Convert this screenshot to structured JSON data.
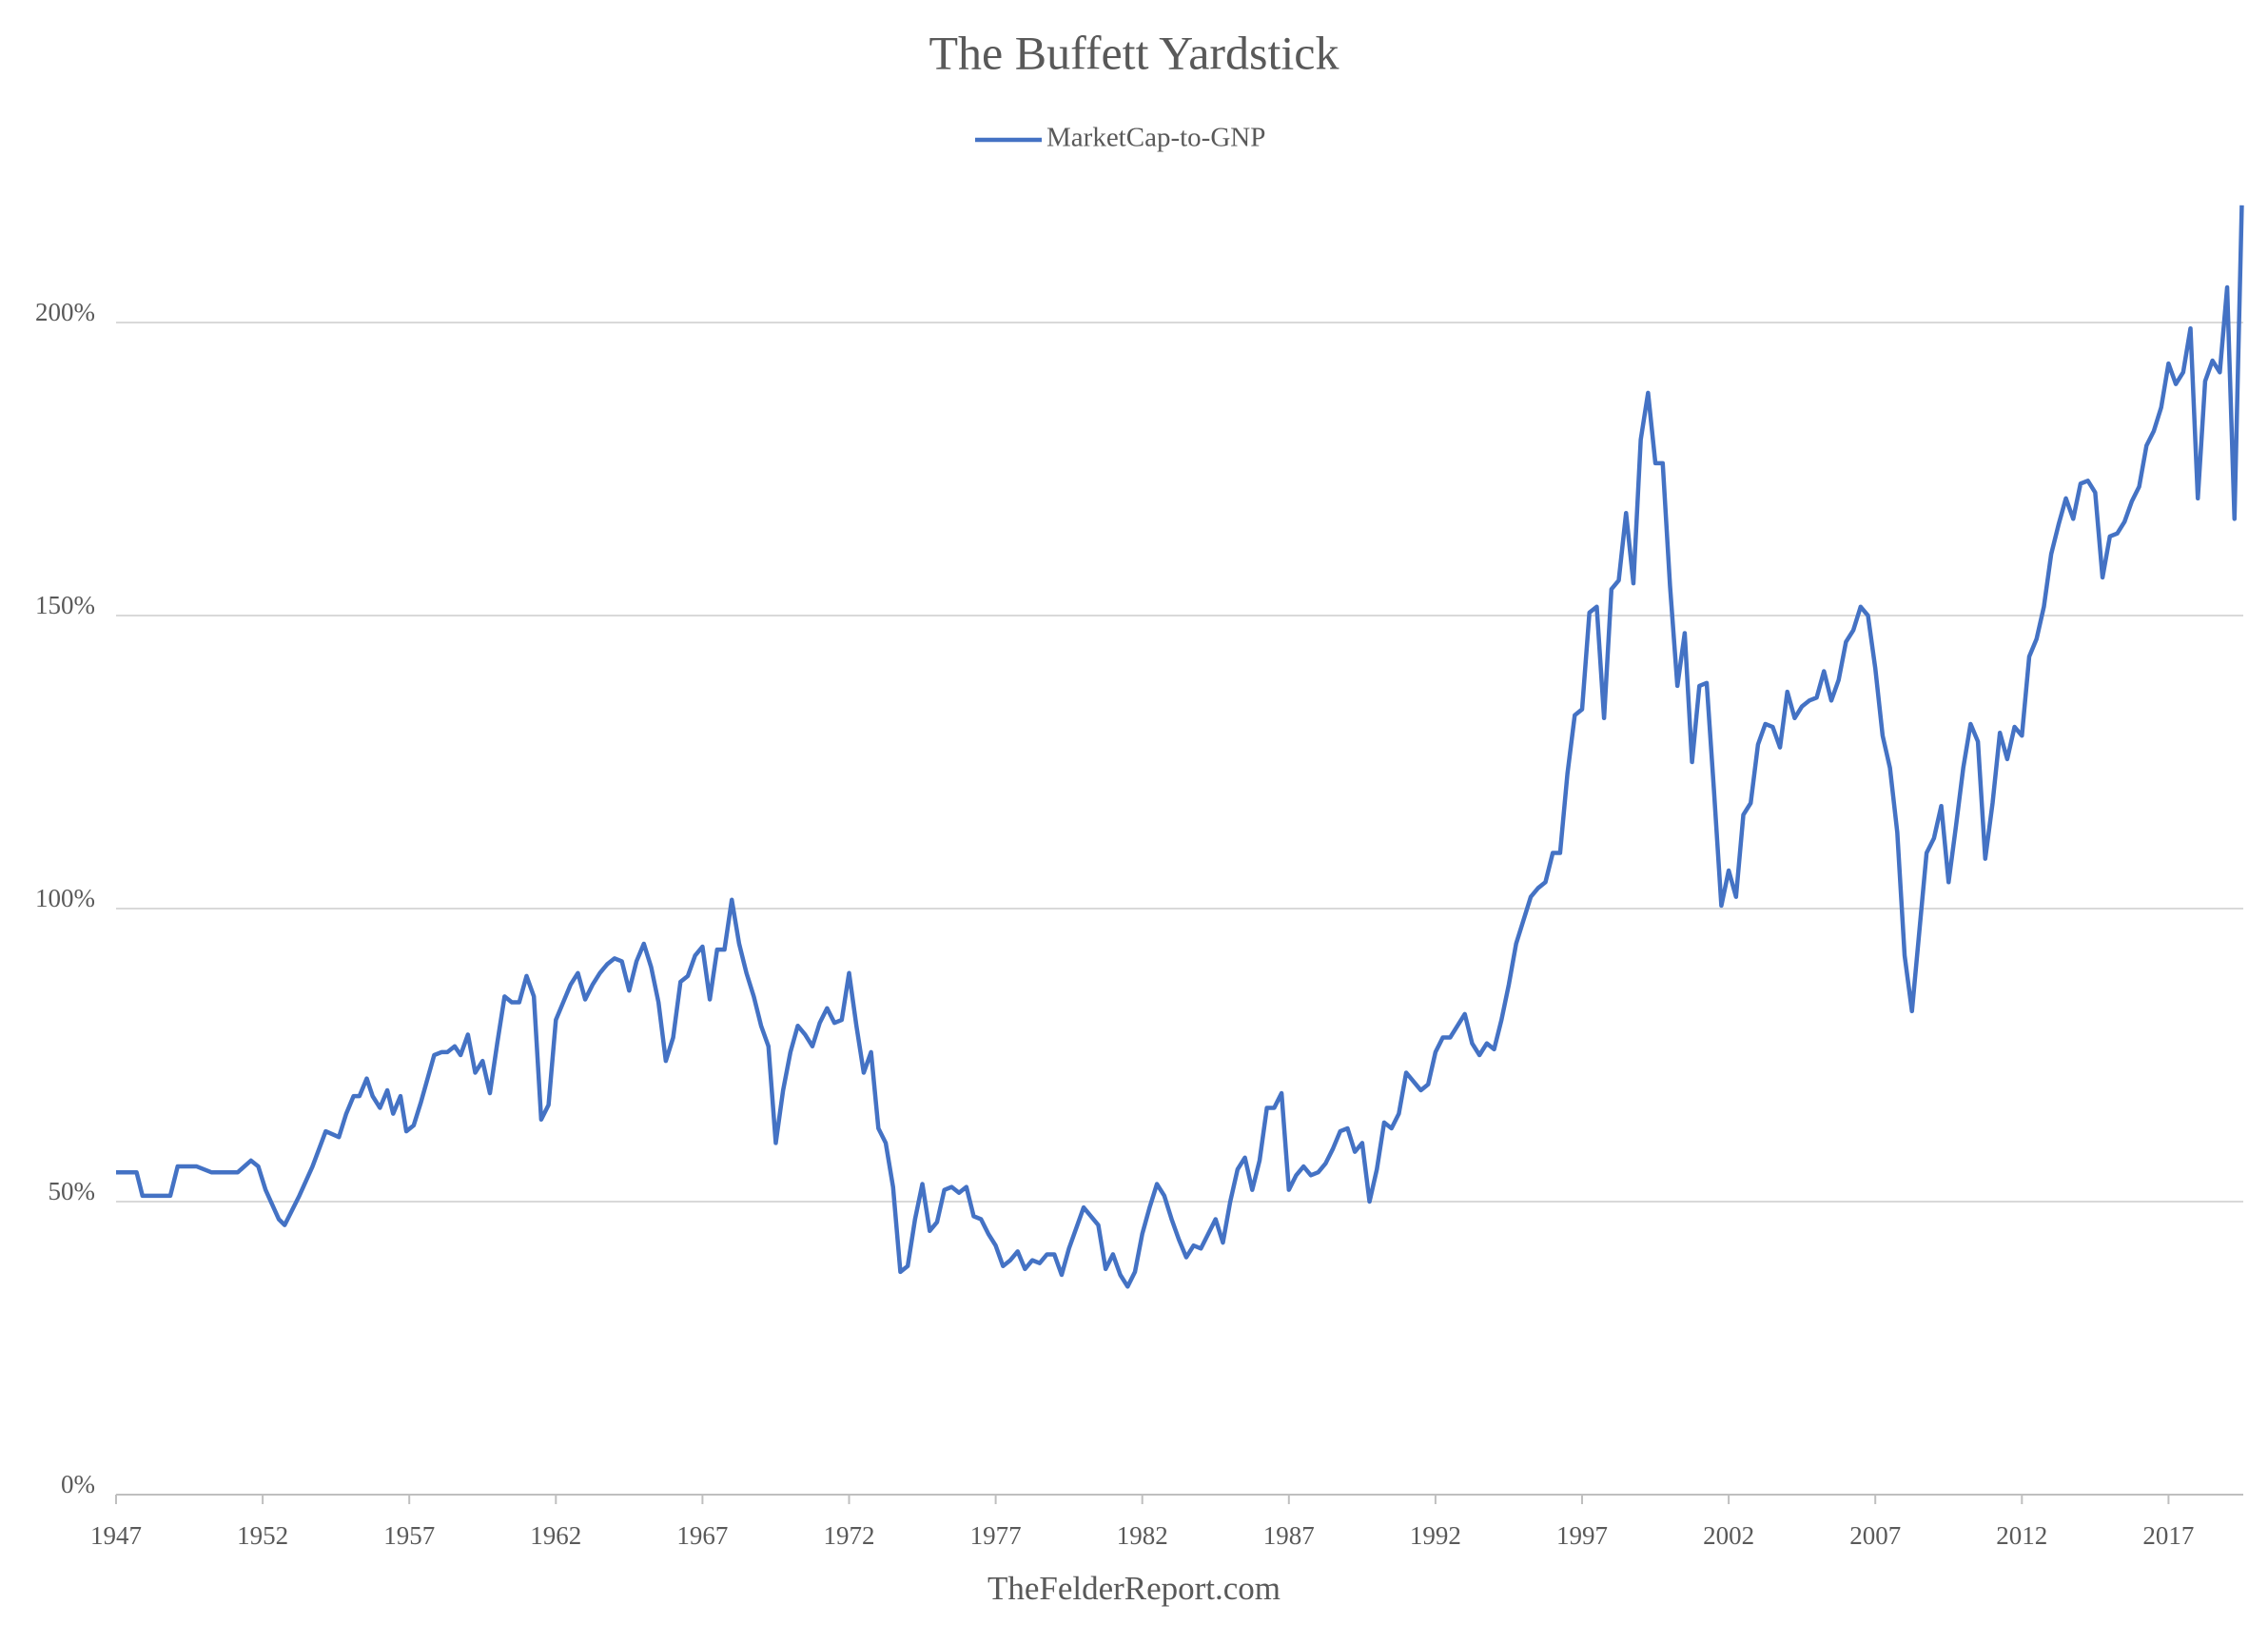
{
  "chart_data": {
    "type": "line",
    "title": "The Buffett Yardstick",
    "source": "TheFelderReport.com",
    "x": [
      1947,
      1947.7,
      1947.9,
      1948.85,
      1949.1,
      1949.75,
      1950.25,
      1951.15,
      1951.6,
      1951.85,
      1952.1,
      1952.55,
      1952.75,
      1953.25,
      1953.7,
      1954.15,
      1954.6,
      1954.85,
      1955.1,
      1955.3,
      1955.55,
      1955.75,
      1956.0,
      1956.25,
      1956.45,
      1956.7,
      1956.9,
      1957.15,
      1957.4,
      1957.85,
      1958.1,
      1958.3,
      1958.55,
      1958.75,
      1959.0,
      1959.25,
      1959.5,
      1959.75,
      1960.0,
      1960.25,
      1960.5,
      1960.75,
      1961.0,
      1961.25,
      1961.5,
      1961.75,
      1962.0,
      1962.25,
      1962.5,
      1962.75,
      1963.0,
      1963.25,
      1963.5,
      1963.75,
      1964.0,
      1964.25,
      1964.5,
      1964.75,
      1965.0,
      1965.25,
      1965.5,
      1965.75,
      1966.0,
      1966.25,
      1966.5,
      1966.75,
      1967.0,
      1967.25,
      1967.5,
      1967.75,
      1968.0,
      1968.25,
      1968.5,
      1968.75,
      1969.0,
      1969.25,
      1969.5,
      1969.75,
      1970.0,
      1970.25,
      1970.5,
      1970.75,
      1971.0,
      1971.25,
      1971.5,
      1971.75,
      1972.0,
      1972.25,
      1972.5,
      1972.75,
      1973.0,
      1973.25,
      1973.5,
      1973.75,
      1974.0,
      1974.25,
      1974.5,
      1974.75,
      1975.0,
      1975.25,
      1975.5,
      1975.75,
      1976.0,
      1976.25,
      1976.5,
      1976.75,
      1977.0,
      1977.25,
      1977.5,
      1977.75,
      1978.0,
      1978.25,
      1978.5,
      1978.75,
      1979.0,
      1979.25,
      1979.5,
      1979.75,
      1980.0,
      1980.25,
      1980.5,
      1980.75,
      1981.0,
      1981.25,
      1981.5,
      1981.75,
      1982.0,
      1982.25,
      1982.5,
      1982.75,
      1983.0,
      1983.25,
      1983.5,
      1983.75,
      1984.0,
      1984.25,
      1984.5,
      1984.75,
      1985.0,
      1985.25,
      1985.5,
      1985.75,
      1986.0,
      1986.25,
      1986.5,
      1986.75,
      1987.0,
      1987.25,
      1987.5,
      1987.75,
      1988.0,
      1988.25,
      1988.5,
      1988.75,
      1989.0,
      1989.25,
      1989.5,
      1989.75,
      1990.0,
      1990.25,
      1990.5,
      1990.75,
      1991.0,
      1991.25,
      1991.5,
      1991.75,
      1992.0,
      1992.25,
      1992.5,
      1992.75,
      1993.0,
      1993.25,
      1993.5,
      1993.75,
      1994.0,
      1994.25,
      1994.5,
      1994.75,
      1995.0,
      1995.25,
      1995.5,
      1995.75,
      1996.0,
      1996.25,
      1996.5,
      1996.75,
      1997.0,
      1997.25,
      1997.5,
      1997.75,
      1998.0,
      1998.25,
      1998.5,
      1998.75,
      1999.0,
      1999.25,
      1999.5,
      1999.75,
      2000.0,
      2000.25,
      2000.5,
      2000.75,
      2001.0,
      2001.25,
      2001.5,
      2001.75,
      2002.0,
      2002.25,
      2002.5,
      2002.75,
      2003.0,
      2003.25,
      2003.5,
      2003.75,
      2004.0,
      2004.25,
      2004.5,
      2004.75,
      2005.0,
      2005.25,
      2005.5,
      2005.75,
      2006.0,
      2006.25,
      2006.5,
      2006.75,
      2007.0,
      2007.25,
      2007.5,
      2007.75,
      2008.0,
      2008.25,
      2008.5,
      2008.75,
      2009.0,
      2009.25,
      2009.5,
      2009.75,
      2010.0,
      2010.25,
      2010.5,
      2010.75,
      2011.0,
      2011.25,
      2011.5,
      2011.75,
      2012.0,
      2012.25,
      2012.5,
      2012.75,
      2013.0,
      2013.25,
      2013.5,
      2013.75,
      2014.0,
      2014.25,
      2014.5,
      2014.75,
      2015.0,
      2015.25,
      2015.5,
      2015.75,
      2016.0,
      2016.25,
      2016.5,
      2016.75,
      2017.0,
      2017.25,
      2017.5,
      2017.75,
      2018.0,
      2018.25,
      2018.5,
      2018.75,
      2019.0,
      2019.25,
      2019.5
    ],
    "series": [
      {
        "name": "MarketCap-to-GNP",
        "color": "#4472c4",
        "values": [
          55,
          55,
          51,
          51,
          56,
          56,
          55,
          55,
          57,
          56,
          52,
          47,
          46,
          51,
          56,
          62,
          61,
          65,
          68,
          68,
          71,
          68,
          66,
          69,
          65,
          68,
          62,
          63,
          67,
          75,
          75.5,
          75.5,
          76.5,
          75,
          78.5,
          72,
          74,
          68.5,
          77,
          85,
          84,
          84,
          88.5,
          85,
          64,
          66.5,
          81,
          84,
          87,
          89,
          84.5,
          87,
          89,
          90.5,
          91.5,
          91,
          86,
          91,
          94,
          90,
          84,
          74,
          78,
          87.5,
          88.5,
          92,
          93.5,
          84.5,
          93,
          93,
          101.5,
          94,
          89,
          85,
          80,
          76.5,
          60,
          69,
          75.5,
          80,
          78.5,
          76.5,
          80.5,
          83,
          80.5,
          81,
          89,
          80,
          72,
          75.5,
          62.5,
          60,
          52.5,
          38,
          39,
          47,
          53,
          45,
          46.5,
          52,
          52.5,
          51.5,
          52.5,
          47.5,
          47,
          44.5,
          42.5,
          39,
          40,
          41.5,
          38.5,
          40,
          39.5,
          41,
          41,
          37.5,
          42,
          45.5,
          49,
          47.5,
          46,
          38.5,
          41,
          37.5,
          35.5,
          38,
          44.5,
          49,
          53,
          51,
          47,
          43.5,
          40.5,
          42.5,
          42,
          44.5,
          47,
          43,
          50,
          55.5,
          57.5,
          52,
          57,
          66,
          66,
          68.5,
          52,
          54.5,
          56,
          54.5,
          55,
          56.5,
          59,
          62,
          62.5,
          58.5,
          60,
          50,
          55.5,
          63.5,
          62.5,
          65,
          72,
          70.5,
          69,
          70,
          75.5,
          78,
          78,
          80,
          82,
          77,
          75,
          77,
          76,
          81,
          87,
          94,
          98,
          102,
          103.5,
          104.5,
          109.5,
          109.5,
          123,
          133,
          134,
          150.5,
          151.5,
          132.5,
          154.5,
          156,
          167.5,
          155.5,
          180,
          188,
          176,
          176,
          155,
          138,
          147,
          125,
          138,
          138.5,
          120,
          100.5,
          106.5,
          102,
          116,
          118,
          128,
          131.5,
          131,
          127.5,
          137,
          132.5,
          134.5,
          135.5,
          136,
          140.5,
          135.5,
          139,
          145.5,
          147.5,
          151.5,
          150,
          141,
          129.5,
          124,
          113,
          92,
          82.5,
          96,
          109.5,
          112,
          117.5,
          104.5,
          114,
          124,
          131.5,
          128.5,
          108.5,
          118,
          130,
          125.5,
          131,
          129.5,
          143,
          146,
          151.5,
          160.5,
          165.5,
          170,
          166.5,
          172.5,
          173,
          171,
          156.5,
          163.5,
          164,
          166,
          169.5,
          172,
          179,
          181.5,
          185.5,
          193,
          189.5,
          191.5,
          199,
          170,
          190,
          193.5,
          191.5,
          206,
          166.5,
          220
        ]
      }
    ],
    "xlim": [
      1947,
      2019.55
    ],
    "xticks": [
      1947,
      1952,
      1957,
      1962,
      1967,
      1972,
      1977,
      1982,
      1987,
      1992,
      1997,
      2002,
      2007,
      2012,
      2017
    ],
    "ylim": [
      0,
      225
    ],
    "yticks": [
      {
        "value": 0,
        "label": "0%"
      },
      {
        "value": 50,
        "label": "50%"
      },
      {
        "value": 100,
        "label": "100%"
      },
      {
        "value": 150,
        "label": "150%"
      },
      {
        "value": 200,
        "label": "200%"
      }
    ],
    "grid": true
  }
}
